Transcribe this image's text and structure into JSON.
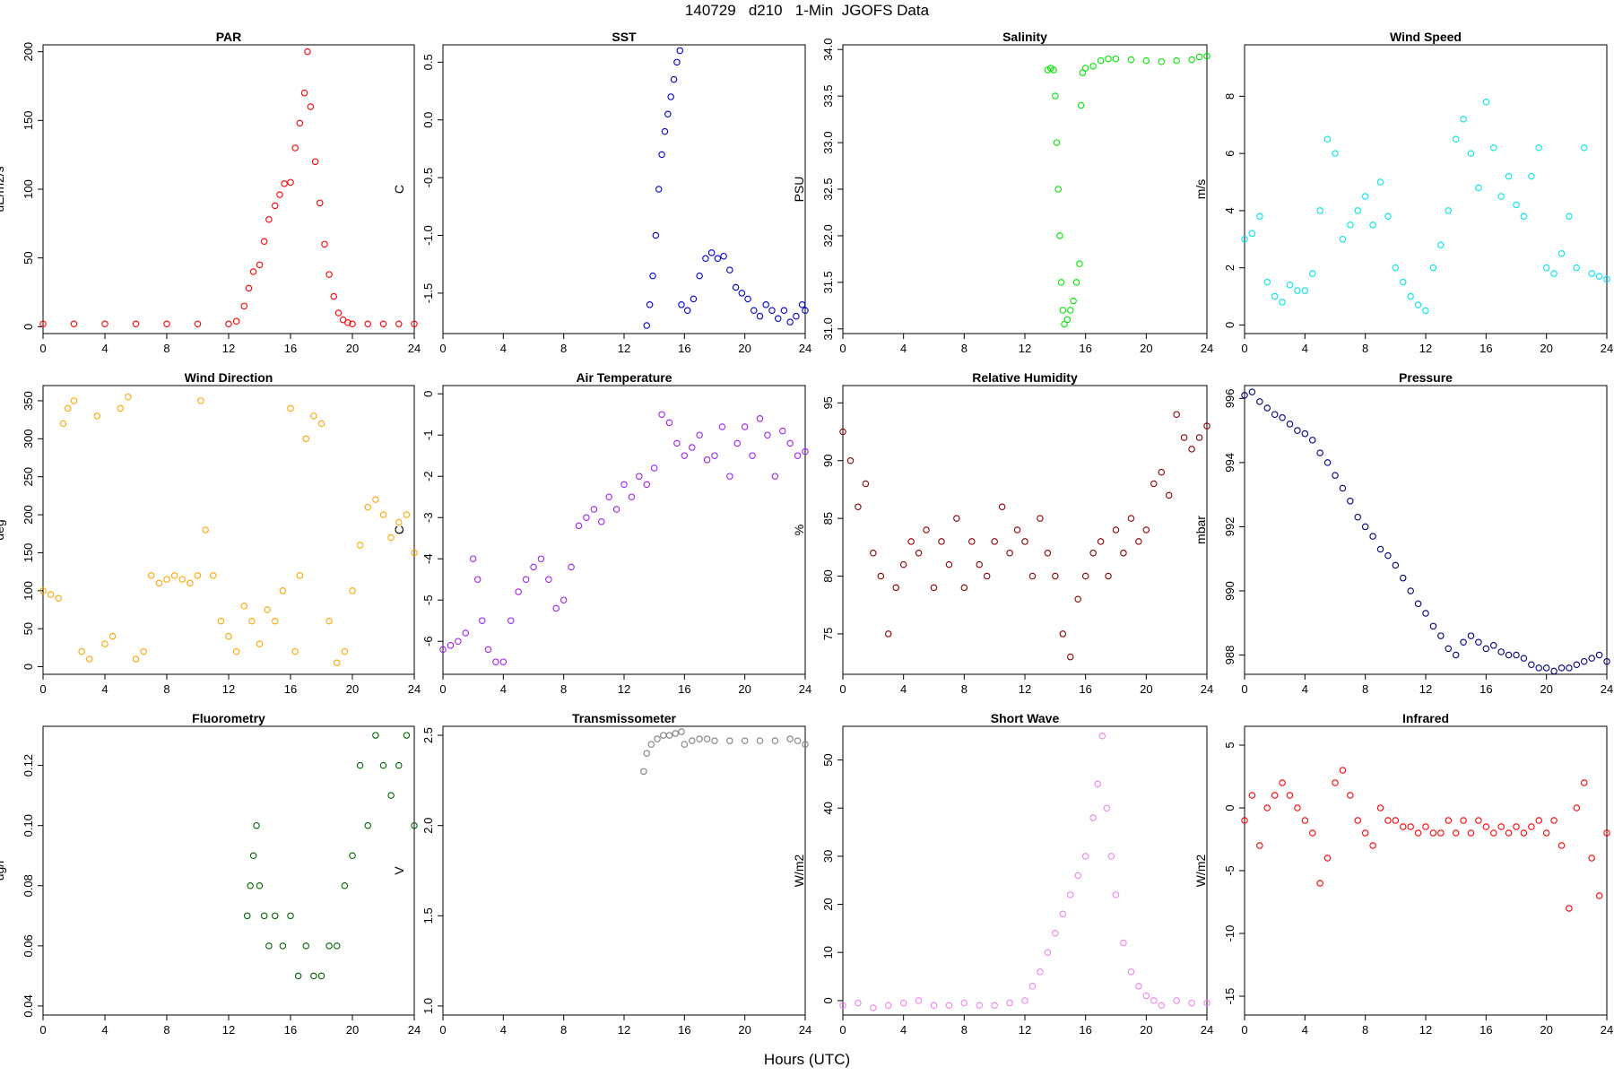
{
  "figure": {
    "title": "140729   d210   1-Min  JGOFS Data",
    "xlabel": "Hours (UTC)"
  },
  "chart_data": [
    {
      "type": "scatter",
      "title": "PAR",
      "ylabel": "uE/m2/s",
      "color": "#ff0000",
      "xlim": [
        0,
        24
      ],
      "xticks": [
        0,
        4,
        8,
        12,
        16,
        20,
        24
      ],
      "ylim": [
        -5,
        205
      ],
      "yticks": [
        0,
        50,
        100,
        150,
        200
      ],
      "x": [
        0,
        2,
        4,
        6,
        8,
        10,
        12,
        12.5,
        13,
        13.3,
        13.6,
        14,
        14.3,
        14.6,
        15,
        15.3,
        15.6,
        16,
        16.3,
        16.6,
        16.9,
        17.1,
        17.3,
        17.6,
        17.9,
        18.2,
        18.5,
        18.8,
        19.1,
        19.4,
        19.7,
        20,
        21,
        22,
        23,
        24
      ],
      "y": [
        2,
        2,
        2,
        2,
        2,
        2,
        2,
        4,
        15,
        28,
        40,
        45,
        62,
        78,
        88,
        96,
        104,
        105,
        130,
        148,
        170,
        200,
        160,
        120,
        90,
        60,
        38,
        22,
        10,
        5,
        3,
        2,
        2,
        2,
        2,
        2
      ]
    },
    {
      "type": "scatter",
      "title": "SST",
      "ylabel": "C",
      "color": "#0000cc",
      "xlim": [
        0,
        24
      ],
      "xticks": [
        0,
        4,
        8,
        12,
        16,
        20,
        24
      ],
      "ylim": [
        -1.85,
        0.65
      ],
      "yticks": [
        -1.5,
        -1.0,
        -0.5,
        0.0,
        0.5
      ],
      "yticklabels": [
        "-1.5",
        "-1.0",
        "-0.5",
        "0.0",
        "0.5"
      ],
      "x": [
        13.5,
        13.7,
        13.9,
        14.1,
        14.3,
        14.5,
        14.7,
        14.9,
        15.1,
        15.3,
        15.5,
        15.7,
        15.8,
        16.2,
        16.6,
        17.0,
        17.4,
        17.8,
        18.2,
        18.6,
        19.0,
        19.4,
        19.8,
        20.2,
        20.6,
        21.0,
        21.4,
        21.8,
        22.2,
        22.6,
        23.0,
        23.4,
        23.8,
        24.0
      ],
      "y": [
        -1.78,
        -1.6,
        -1.35,
        -1.0,
        -0.6,
        -0.3,
        -0.1,
        0.05,
        0.2,
        0.35,
        0.5,
        0.6,
        -1.6,
        -1.65,
        -1.55,
        -1.35,
        -1.2,
        -1.15,
        -1.2,
        -1.18,
        -1.3,
        -1.45,
        -1.5,
        -1.55,
        -1.65,
        -1.7,
        -1.6,
        -1.65,
        -1.72,
        -1.65,
        -1.75,
        -1.7,
        -1.6,
        -1.65
      ]
    },
    {
      "type": "scatter",
      "title": "Salinity",
      "ylabel": "PSU",
      "color": "#00e600",
      "xlim": [
        0,
        24
      ],
      "xticks": [
        0,
        4,
        8,
        12,
        16,
        20,
        24
      ],
      "ylim": [
        30.95,
        34.05
      ],
      "yticks": [
        31.0,
        31.5,
        32.0,
        32.5,
        33.0,
        33.5,
        34.0
      ],
      "yticklabels": [
        "31.0",
        "31.5",
        "32.0",
        "32.5",
        "33.0",
        "33.5",
        "34.0"
      ],
      "x": [
        13.5,
        13.7,
        13.9,
        14.0,
        14.1,
        14.2,
        14.3,
        14.4,
        14.5,
        14.6,
        14.8,
        15.0,
        15.2,
        15.4,
        15.6,
        15.7,
        15.8,
        16.0,
        16.5,
        17,
        17.5,
        18,
        19,
        20,
        21,
        22,
        23,
        23.5,
        24
      ],
      "y": [
        33.78,
        33.8,
        33.78,
        33.5,
        33.0,
        32.5,
        32.0,
        31.5,
        31.2,
        31.05,
        31.1,
        31.2,
        31.3,
        31.5,
        31.7,
        33.4,
        33.75,
        33.8,
        33.82,
        33.88,
        33.9,
        33.9,
        33.89,
        33.88,
        33.87,
        33.88,
        33.89,
        33.92,
        33.93
      ]
    },
    {
      "type": "scatter",
      "title": "Wind Speed",
      "ylabel": "m/s",
      "color": "#00e5ee",
      "xlim": [
        0,
        24
      ],
      "xticks": [
        0,
        4,
        8,
        12,
        16,
        20,
        24
      ],
      "ylim": [
        -0.3,
        9.8
      ],
      "yticks": [
        0,
        2,
        4,
        6,
        8
      ],
      "x": [
        0,
        0.5,
        1,
        1.5,
        2,
        2.5,
        3,
        3.5,
        4,
        4.5,
        5,
        5.5,
        6,
        6.5,
        7,
        7.5,
        8,
        8.5,
        9,
        9.5,
        10,
        10.5,
        11,
        11.5,
        12,
        12.5,
        13,
        13.5,
        14,
        14.5,
        15,
        15.5,
        16,
        16.5,
        17,
        17.5,
        18,
        18.5,
        19,
        19.5,
        20,
        20.5,
        21,
        21.5,
        22,
        22.5,
        23,
        23.5,
        24
      ],
      "y": [
        3,
        3.2,
        3.8,
        1.5,
        1.0,
        0.8,
        1.4,
        1.2,
        1.2,
        1.8,
        4,
        6.5,
        6,
        3,
        3.5,
        4,
        4.5,
        3.5,
        5,
        3.8,
        2,
        1.5,
        1,
        0.7,
        0.5,
        2,
        2.8,
        4,
        6.5,
        7.2,
        6,
        4.8,
        7.8,
        6.2,
        4.5,
        5.2,
        4.2,
        3.8,
        5.2,
        6.2,
        2,
        1.8,
        2.5,
        3.8,
        2,
        6.2,
        1.8,
        1.7,
        1.6
      ]
    },
    {
      "type": "scatter",
      "title": "Wind Direction",
      "ylabel": "deg",
      "color": "#ffa500",
      "xlim": [
        0,
        24
      ],
      "xticks": [
        0,
        4,
        8,
        12,
        16,
        20,
        24
      ],
      "ylim": [
        -10,
        370
      ],
      "yticks": [
        0,
        50,
        100,
        150,
        200,
        250,
        300,
        350
      ],
      "x": [
        0,
        0.5,
        1,
        1.3,
        1.6,
        2,
        2.5,
        3,
        3.5,
        4,
        4.5,
        5,
        5.5,
        6,
        6.5,
        7,
        7.5,
        8,
        8.5,
        9,
        9.5,
        10,
        10.2,
        10.5,
        11,
        11.5,
        12,
        12.5,
        13,
        13.5,
        14,
        14.5,
        15,
        15.5,
        16,
        16.3,
        16.6,
        17,
        17.5,
        18,
        18.5,
        19,
        19.5,
        20,
        20.5,
        21,
        21.5,
        22,
        22.5,
        23,
        23.5,
        24
      ],
      "y": [
        100,
        95,
        90,
        320,
        340,
        350,
        20,
        10,
        330,
        30,
        40,
        340,
        355,
        10,
        20,
        120,
        110,
        115,
        120,
        115,
        110,
        120,
        350,
        180,
        120,
        60,
        40,
        20,
        80,
        60,
        30,
        75,
        60,
        100,
        340,
        20,
        120,
        300,
        330,
        320,
        60,
        5,
        20,
        100,
        160,
        210,
        220,
        200,
        170,
        190,
        200,
        150
      ]
    },
    {
      "type": "scatter",
      "title": "Air Temperature",
      "ylabel": "C",
      "color": "#a020f0",
      "xlim": [
        0,
        24
      ],
      "xticks": [
        0,
        4,
        8,
        12,
        16,
        20,
        24
      ],
      "ylim": [
        -6.8,
        0.2
      ],
      "yticks": [
        -6,
        -5,
        -4,
        -3,
        -2,
        -1,
        0
      ],
      "x": [
        0,
        0.5,
        1,
        1.5,
        2,
        2.3,
        2.6,
        3,
        3.5,
        4,
        4.5,
        5,
        5.5,
        6,
        6.5,
        7,
        7.5,
        8,
        8.5,
        9,
        9.5,
        10,
        10.5,
        11,
        11.5,
        12,
        12.5,
        13,
        13.5,
        14,
        14.5,
        15,
        15.5,
        16,
        16.5,
        17,
        17.5,
        18,
        18.5,
        19,
        19.5,
        20,
        20.5,
        21,
        21.5,
        22,
        22.5,
        23,
        23.5,
        24
      ],
      "y": [
        -6.2,
        -6.1,
        -6.0,
        -5.8,
        -4.0,
        -4.5,
        -5.5,
        -6.2,
        -6.5,
        -6.5,
        -5.5,
        -4.8,
        -4.5,
        -4.2,
        -4.0,
        -4.5,
        -5.2,
        -5.0,
        -4.2,
        -3.2,
        -3.0,
        -2.8,
        -3.1,
        -2.5,
        -2.8,
        -2.2,
        -2.5,
        -2.0,
        -2.2,
        -1.8,
        -0.5,
        -0.7,
        -1.2,
        -1.5,
        -1.3,
        -1.0,
        -1.6,
        -1.5,
        -0.8,
        -2.0,
        -1.2,
        -0.8,
        -1.5,
        -0.6,
        -1.0,
        -2.0,
        -0.9,
        -1.2,
        -1.5,
        -1.4
      ]
    },
    {
      "type": "scatter",
      "title": "Relative Humidity",
      "ylabel": "%",
      "color": "#8b0000",
      "xlim": [
        0,
        24
      ],
      "xticks": [
        0,
        4,
        8,
        12,
        16,
        20,
        24
      ],
      "ylim": [
        71.5,
        96.5
      ],
      "yticks": [
        75,
        80,
        85,
        90,
        95
      ],
      "x": [
        0,
        0.5,
        1,
        1.5,
        2,
        2.5,
        3,
        3.5,
        4,
        4.5,
        5,
        5.5,
        6,
        6.5,
        7,
        7.5,
        8,
        8.5,
        9,
        9.5,
        10,
        10.5,
        11,
        11.5,
        12,
        12.5,
        13,
        13.5,
        14,
        14.5,
        15,
        15.5,
        16,
        16.5,
        17,
        17.5,
        18,
        18.5,
        19,
        19.5,
        20,
        20.5,
        21,
        21.5,
        22,
        22.5,
        23,
        23.5,
        24
      ],
      "y": [
        92.5,
        90,
        86,
        88,
        82,
        80,
        75,
        79,
        81,
        83,
        82,
        84,
        79,
        83,
        81,
        85,
        79,
        83,
        81,
        80,
        83,
        86,
        82,
        84,
        83,
        80,
        85,
        82,
        80,
        75,
        73,
        78,
        80,
        82,
        83,
        80,
        84,
        82,
        85,
        83,
        84,
        88,
        89,
        87,
        94,
        92,
        91,
        92,
        93
      ]
    },
    {
      "type": "scatter",
      "title": "Pressure",
      "ylabel": "mbar",
      "color": "#000080",
      "xlim": [
        0,
        24
      ],
      "xticks": [
        0,
        4,
        8,
        12,
        16,
        20,
        24
      ],
      "ylim": [
        987.4,
        996.4
      ],
      "yticks": [
        988,
        990,
        992,
        994,
        996
      ],
      "x": [
        0,
        0.5,
        1,
        1.5,
        2,
        2.5,
        3,
        3.5,
        4,
        4.5,
        5,
        5.5,
        6,
        6.5,
        7,
        7.5,
        8,
        8.5,
        9,
        9.5,
        10,
        10.5,
        11,
        11.5,
        12,
        12.5,
        13,
        13.5,
        14,
        14.5,
        15,
        15.5,
        16,
        16.5,
        17,
        17.5,
        18,
        18.5,
        19,
        19.5,
        20,
        20.5,
        21,
        21.5,
        22,
        22.5,
        23,
        23.5,
        24
      ],
      "y": [
        996.1,
        996.2,
        995.9,
        995.7,
        995.5,
        995.4,
        995.2,
        995.0,
        994.9,
        994.7,
        994.3,
        994.0,
        993.6,
        993.2,
        992.8,
        992.3,
        992.0,
        991.7,
        991.3,
        991.1,
        990.8,
        990.4,
        990.0,
        989.6,
        989.3,
        988.9,
        988.6,
        988.2,
        988.0,
        988.4,
        988.6,
        988.4,
        988.2,
        988.3,
        988.1,
        988.0,
        988.0,
        987.9,
        987.7,
        987.6,
        987.6,
        987.5,
        987.6,
        987.6,
        987.7,
        987.8,
        987.9,
        988.0,
        987.8
      ]
    },
    {
      "type": "scatter",
      "title": "Fluorometry",
      "ylabel": "ug/l",
      "color": "#006400",
      "xlim": [
        0,
        24
      ],
      "xticks": [
        0,
        4,
        8,
        12,
        16,
        20,
        24
      ],
      "ylim": [
        0.037,
        0.133
      ],
      "yticks": [
        0.04,
        0.06,
        0.08,
        0.1,
        0.12
      ],
      "yticklabels": [
        "0.04",
        "0.06",
        "0.08",
        "0.10",
        "0.12"
      ],
      "x": [
        13.2,
        13.4,
        13.6,
        13.8,
        14,
        14.3,
        14.6,
        15,
        15.5,
        16,
        16.5,
        17,
        17.5,
        18,
        18.5,
        19,
        19.5,
        20,
        20.5,
        21,
        21.5,
        22,
        22.5,
        23,
        23.5,
        24
      ],
      "y": [
        0.07,
        0.08,
        0.09,
        0.1,
        0.08,
        0.07,
        0.06,
        0.07,
        0.06,
        0.07,
        0.05,
        0.06,
        0.05,
        0.05,
        0.06,
        0.06,
        0.08,
        0.09,
        0.12,
        0.1,
        0.13,
        0.12,
        0.11,
        0.12,
        0.13,
        0.1
      ]
    },
    {
      "type": "scatter",
      "title": "Transmissometer",
      "ylabel": "V",
      "color": "#808080",
      "xlim": [
        0,
        24
      ],
      "xticks": [
        0,
        4,
        8,
        12,
        16,
        20,
        24
      ],
      "ylim": [
        0.95,
        2.55
      ],
      "yticks": [
        1.0,
        1.5,
        2.0,
        2.5
      ],
      "yticklabels": [
        "1.0",
        "1.5",
        "2.0",
        "2.5"
      ],
      "x": [
        13.3,
        13.5,
        13.8,
        14.2,
        14.6,
        15,
        15.4,
        15.8,
        16,
        16.5,
        17,
        17.5,
        18,
        19,
        20,
        21,
        22,
        23,
        23.5,
        24
      ],
      "y": [
        2.3,
        2.4,
        2.45,
        2.48,
        2.5,
        2.5,
        2.51,
        2.52,
        2.45,
        2.47,
        2.48,
        2.48,
        2.47,
        2.47,
        2.47,
        2.47,
        2.47,
        2.48,
        2.47,
        2.45
      ]
    },
    {
      "type": "scatter",
      "title": "Short Wave",
      "ylabel": "W/m2",
      "color": "#ee82ee",
      "xlim": [
        0,
        24
      ],
      "xticks": [
        0,
        4,
        8,
        12,
        16,
        20,
        24
      ],
      "ylim": [
        -3,
        57
      ],
      "yticks": [
        0,
        10,
        20,
        30,
        40,
        50
      ],
      "x": [
        0,
        1,
        2,
        3,
        4,
        5,
        6,
        7,
        8,
        9,
        10,
        11,
        12,
        12.5,
        13,
        13.5,
        14,
        14.5,
        15,
        15.5,
        16,
        16.5,
        16.8,
        17.1,
        17.4,
        17.7,
        18,
        18.5,
        19,
        19.5,
        20,
        20.5,
        21,
        22,
        23,
        24
      ],
      "y": [
        -1,
        -0.5,
        -1.5,
        -1,
        -0.5,
        0,
        -1,
        -1,
        -0.5,
        -1,
        -1,
        -0.5,
        0,
        3,
        6,
        10,
        14,
        18,
        22,
        26,
        30,
        38,
        45,
        55,
        40,
        30,
        22,
        12,
        6,
        3,
        1,
        0,
        -1,
        0,
        -0.5,
        -0.5
      ]
    },
    {
      "type": "scatter",
      "title": "Infrared",
      "ylabel": "W/m2",
      "color": "#ff0000",
      "xlim": [
        0,
        24
      ],
      "xticks": [
        0,
        4,
        8,
        12,
        16,
        20,
        24
      ],
      "ylim": [
        -16.5,
        6.5
      ],
      "yticks": [
        -15,
        -10,
        -5,
        0,
        5
      ],
      "x": [
        0,
        0.5,
        1,
        1.5,
        2,
        2.5,
        3,
        3.5,
        4,
        4.5,
        5,
        5.5,
        6,
        6.5,
        7,
        7.5,
        8,
        8.5,
        9,
        9.5,
        10,
        10.5,
        11,
        11.5,
        12,
        12.5,
        13,
        13.5,
        14,
        14.5,
        15,
        15.5,
        16,
        16.5,
        17,
        17.5,
        18,
        18.5,
        19,
        19.5,
        20,
        20.5,
        21,
        21.5,
        22,
        22.5,
        23,
        23.5,
        24
      ],
      "y": [
        -1,
        1,
        -3,
        0,
        1,
        2,
        1,
        0,
        -1,
        -2,
        -6,
        -4,
        2,
        3,
        1,
        -1,
        -2,
        -3,
        0,
        -1,
        -1,
        -1.5,
        -1.5,
        -2,
        -1.5,
        -2,
        -2,
        -1,
        -2,
        -1,
        -2,
        -1,
        -1.5,
        -2,
        -1.5,
        -2,
        -1.5,
        -2,
        -1.5,
        -1,
        -2,
        -1,
        -3,
        -8,
        0,
        2,
        -4,
        -7,
        -2
      ]
    }
  ]
}
